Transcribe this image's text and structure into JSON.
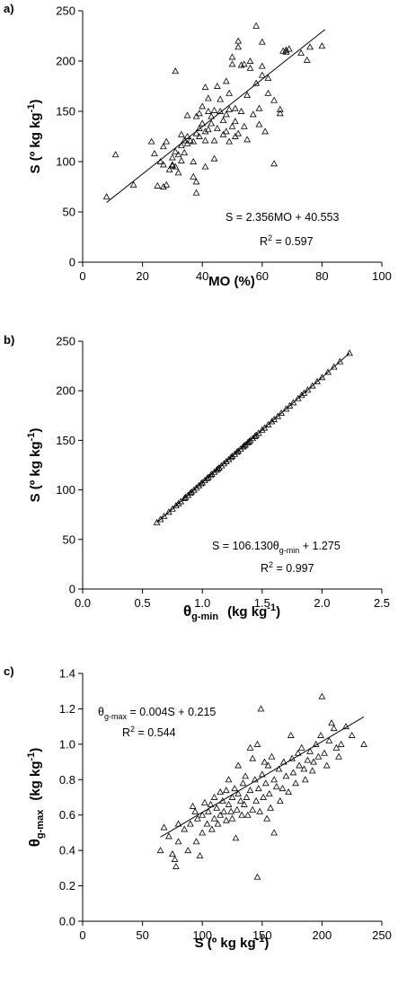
{
  "chart_data": [
    {
      "type": "scatter",
      "panel_label": "a)",
      "xlabel": "MO (%)",
      "ylabel": "S (º kg kg",
      "ylabel_sup": "-1",
      "ylabel_tail": ")",
      "xlim": [
        0,
        100
      ],
      "ylim": [
        0,
        250
      ],
      "xticks": [
        "0",
        "20",
        "40",
        "60",
        "80",
        "100"
      ],
      "yticks": [
        "0",
        "50",
        "100",
        "150",
        "200",
        "250"
      ],
      "grid": false,
      "fit_line": {
        "slope": 2.356,
        "intercept": 40.553,
        "x_range": [
          8,
          81
        ]
      },
      "equation": "S = 2.356MO + 40.553",
      "r2_prefix": "R",
      "r2_sup": "2",
      "r2_value": " = 0.597",
      "points": [
        [
          8,
          65
        ],
        [
          11,
          107
        ],
        [
          17,
          77
        ],
        [
          23,
          120
        ],
        [
          24,
          108
        ],
        [
          25,
          76
        ],
        [
          26,
          100
        ],
        [
          27,
          115
        ],
        [
          27,
          97
        ],
        [
          27,
          75
        ],
        [
          28,
          77
        ],
        [
          28,
          120
        ],
        [
          29,
          92
        ],
        [
          30,
          104
        ],
        [
          30,
          97
        ],
        [
          30,
          96
        ],
        [
          31,
          95
        ],
        [
          31,
          110
        ],
        [
          31,
          190
        ],
        [
          32,
          107
        ],
        [
          32,
          89
        ],
        [
          33,
          101
        ],
        [
          33,
          116
        ],
        [
          33,
          127
        ],
        [
          34,
          121
        ],
        [
          34,
          109
        ],
        [
          35,
          125
        ],
        [
          35,
          118
        ],
        [
          35,
          146
        ],
        [
          36,
          121
        ],
        [
          37,
          120
        ],
        [
          37,
          100
        ],
        [
          37,
          85
        ],
        [
          38,
          80
        ],
        [
          38,
          69
        ],
        [
          38,
          128
        ],
        [
          38,
          145
        ],
        [
          39,
          125
        ],
        [
          39,
          148
        ],
        [
          39,
          133
        ],
        [
          40,
          155
        ],
        [
          40,
          138
        ],
        [
          41,
          121
        ],
        [
          41,
          130
        ],
        [
          41,
          174
        ],
        [
          41,
          95
        ],
        [
          42,
          150
        ],
        [
          42,
          132
        ],
        [
          42,
          163
        ],
        [
          43,
          138
        ],
        [
          43,
          145
        ],
        [
          44,
          151
        ],
        [
          44,
          121
        ],
        [
          44,
          103
        ],
        [
          45,
          133
        ],
        [
          45,
          175
        ],
        [
          46,
          150
        ],
        [
          46,
          162
        ],
        [
          47,
          141
        ],
        [
          47,
          127
        ],
        [
          48,
          147
        ],
        [
          48,
          180
        ],
        [
          48,
          130
        ],
        [
          49,
          168
        ],
        [
          49,
          120
        ],
        [
          49,
          152
        ],
        [
          50,
          204
        ],
        [
          50,
          197
        ],
        [
          50,
          135
        ],
        [
          51,
          140
        ],
        [
          51,
          153
        ],
        [
          51,
          125
        ],
        [
          52,
          214
        ],
        [
          52,
          220
        ],
        [
          52,
          128
        ],
        [
          53,
          150
        ],
        [
          53,
          196
        ],
        [
          54,
          197
        ],
        [
          54,
          135
        ],
        [
          55,
          122
        ],
        [
          55,
          166
        ],
        [
          56,
          200
        ],
        [
          56,
          193
        ],
        [
          57,
          147
        ],
        [
          58,
          235
        ],
        [
          58,
          178
        ],
        [
          59,
          137
        ],
        [
          59,
          153
        ],
        [
          60,
          195
        ],
        [
          60,
          219
        ],
        [
          60,
          186
        ],
        [
          61,
          130
        ],
        [
          62,
          168
        ],
        [
          62,
          183
        ],
        [
          64,
          161
        ],
        [
          64,
          98
        ],
        [
          66,
          148
        ],
        [
          66,
          152
        ],
        [
          67,
          210
        ],
        [
          68,
          209
        ],
        [
          68,
          211
        ],
        [
          69,
          212
        ],
        [
          73,
          208
        ],
        [
          75,
          201
        ],
        [
          80,
          215
        ],
        [
          76,
          214
        ]
      ]
    },
    {
      "type": "scatter",
      "panel_label": "b)",
      "xlabel_sym": "θ",
      "xlabel_sub": "g-min",
      "xlabel_units": "(kg kg",
      "xlabel_sup": "-1",
      "xlabel_tail": ")",
      "ylabel": "S (º kg kg",
      "ylabel_sup": "-1",
      "ylabel_tail": ")",
      "xlim": [
        0.0,
        2.5
      ],
      "ylim": [
        0,
        250
      ],
      "xticks": [
        "0.0",
        "0.5",
        "1.0",
        "1.5",
        "2.0",
        "2.5"
      ],
      "yticks": [
        "0",
        "50",
        "100",
        "150",
        "200",
        "250"
      ],
      "grid": false,
      "fit_line": {
        "slope": 106.13,
        "intercept": 1.275,
        "x_range": [
          0.62,
          2.23
        ]
      },
      "equation_prefix": "S = 106.130θ",
      "equation_sub": "g-min",
      "equation_suffix": " + 1.275",
      "r2_prefix": "R",
      "r2_sup": "2",
      "r2_value": " = 0.997",
      "points_x": [
        0.62,
        0.65,
        0.68,
        0.72,
        0.75,
        0.78,
        0.8,
        0.82,
        0.85,
        0.86,
        0.88,
        0.9,
        0.91,
        0.93,
        0.95,
        0.97,
        0.99,
        1.0,
        1.02,
        1.04,
        1.05,
        1.07,
        1.08,
        1.1,
        1.12,
        1.13,
        1.14,
        1.16,
        1.18,
        1.2,
        1.22,
        1.24,
        1.25,
        1.27,
        1.29,
        1.3,
        1.32,
        1.34,
        1.35,
        1.36,
        1.38,
        1.39,
        1.4,
        1.42,
        1.44,
        1.45,
        1.47,
        1.5,
        1.52,
        1.55,
        1.58,
        1.6,
        1.63,
        1.66,
        1.7,
        1.73,
        1.76,
        1.8,
        1.83,
        1.85,
        1.88,
        1.92,
        1.96,
        2.0,
        2.05,
        2.1,
        2.15,
        2.23
      ]
    },
    {
      "type": "scatter",
      "panel_label": "c)",
      "xlabel": "S (º kg kg",
      "xlabel_sup": "-1",
      "xlabel_tail": ")",
      "ylabel_sym": "θ",
      "ylabel_sub": "g-max",
      "ylabel_units": "(kg kg",
      "ylabel_sup": "-1",
      "ylabel_tail": ")",
      "xlim": [
        0,
        250
      ],
      "ylim": [
        0.0,
        1.4
      ],
      "xticks": [
        "0",
        "50",
        "100",
        "150",
        "200",
        "250"
      ],
      "yticks": [
        "0.0",
        "0.2",
        "0.4",
        "0.6",
        "0.8",
        "1.0",
        "1.2",
        "1.4"
      ],
      "grid": false,
      "fit_line": {
        "slope": 0.004,
        "intercept": 0.215,
        "x_range": [
          65,
          235
        ]
      },
      "equation_sym": "θ",
      "equation_sub": "g-max",
      "equation_suffix": " = 0.004S + 0.215",
      "r2_prefix": "R",
      "r2_sup": "2",
      "r2_value": " = 0.544",
      "points": [
        [
          65,
          0.4
        ],
        [
          68,
          0.53
        ],
        [
          72,
          0.48
        ],
        [
          75,
          0.38
        ],
        [
          77,
          0.35
        ],
        [
          78,
          0.31
        ],
        [
          80,
          0.45
        ],
        [
          80,
          0.55
        ],
        [
          85,
          0.52
        ],
        [
          88,
          0.4
        ],
        [
          90,
          0.55
        ],
        [
          92,
          0.65
        ],
        [
          94,
          0.62
        ],
        [
          95,
          0.45
        ],
        [
          96,
          0.58
        ],
        [
          98,
          0.37
        ],
        [
          100,
          0.5
        ],
        [
          100,
          0.6
        ],
        [
          102,
          0.67
        ],
        [
          104,
          0.55
        ],
        [
          105,
          0.62
        ],
        [
          107,
          0.66
        ],
        [
          108,
          0.52
        ],
        [
          110,
          0.7
        ],
        [
          110,
          0.58
        ],
        [
          112,
          0.64
        ],
        [
          113,
          0.55
        ],
        [
          115,
          0.73
        ],
        [
          115,
          0.6
        ],
        [
          117,
          0.68
        ],
        [
          118,
          0.62
        ],
        [
          120,
          0.74
        ],
        [
          120,
          0.57
        ],
        [
          122,
          0.66
        ],
        [
          122,
          0.8
        ],
        [
          124,
          0.62
        ],
        [
          125,
          0.7
        ],
        [
          125,
          0.58
        ],
        [
          127,
          0.75
        ],
        [
          128,
          0.47
        ],
        [
          129,
          0.63
        ],
        [
          130,
          0.72
        ],
        [
          130,
          0.88
        ],
        [
          132,
          0.68
        ],
        [
          133,
          0.6
        ],
        [
          134,
          0.78
        ],
        [
          135,
          0.66
        ],
        [
          136,
          0.82
        ],
        [
          137,
          0.7
        ],
        [
          138,
          0.6
        ],
        [
          140,
          0.98
        ],
        [
          140,
          0.74
        ],
        [
          142,
          0.92
        ],
        [
          142,
          0.63
        ],
        [
          144,
          0.8
        ],
        [
          145,
          0.68
        ],
        [
          146,
          1.0
        ],
        [
          146,
          0.25
        ],
        [
          147,
          0.75
        ],
        [
          148,
          0.62
        ],
        [
          149,
          1.2
        ],
        [
          150,
          0.83
        ],
        [
          151,
          0.7
        ],
        [
          152,
          0.9
        ],
        [
          153,
          0.78
        ],
        [
          154,
          0.58
        ],
        [
          155,
          0.88
        ],
        [
          156,
          0.72
        ],
        [
          157,
          0.64
        ],
        [
          158,
          0.93
        ],
        [
          160,
          0.8
        ],
        [
          160,
          0.5
        ],
        [
          162,
          0.76
        ],
        [
          164,
          0.86
        ],
        [
          165,
          0.68
        ],
        [
          167,
          0.75
        ],
        [
          168,
          0.9
        ],
        [
          170,
          0.82
        ],
        [
          172,
          0.73
        ],
        [
          174,
          1.05
        ],
        [
          175,
          0.92
        ],
        [
          176,
          0.84
        ],
        [
          178,
          0.78
        ],
        [
          180,
          0.95
        ],
        [
          181,
          0.88
        ],
        [
          183,
          0.98
        ],
        [
          185,
          0.86
        ],
        [
          186,
          0.8
        ],
        [
          188,
          0.91
        ],
        [
          190,
          0.96
        ],
        [
          192,
          0.85
        ],
        [
          193,
          0.9
        ],
        [
          195,
          1.0
        ],
        [
          197,
          0.93
        ],
        [
          199,
          1.05
        ],
        [
          200,
          1.27
        ],
        [
          202,
          0.95
        ],
        [
          204,
          0.88
        ],
        [
          206,
          1.02
        ],
        [
          208,
          1.12
        ],
        [
          210,
          1.09
        ],
        [
          212,
          0.98
        ],
        [
          214,
          0.93
        ],
        [
          216,
          1.0
        ],
        [
          220,
          1.1
        ],
        [
          225,
          1.05
        ],
        [
          235,
          1.0
        ]
      ]
    }
  ]
}
